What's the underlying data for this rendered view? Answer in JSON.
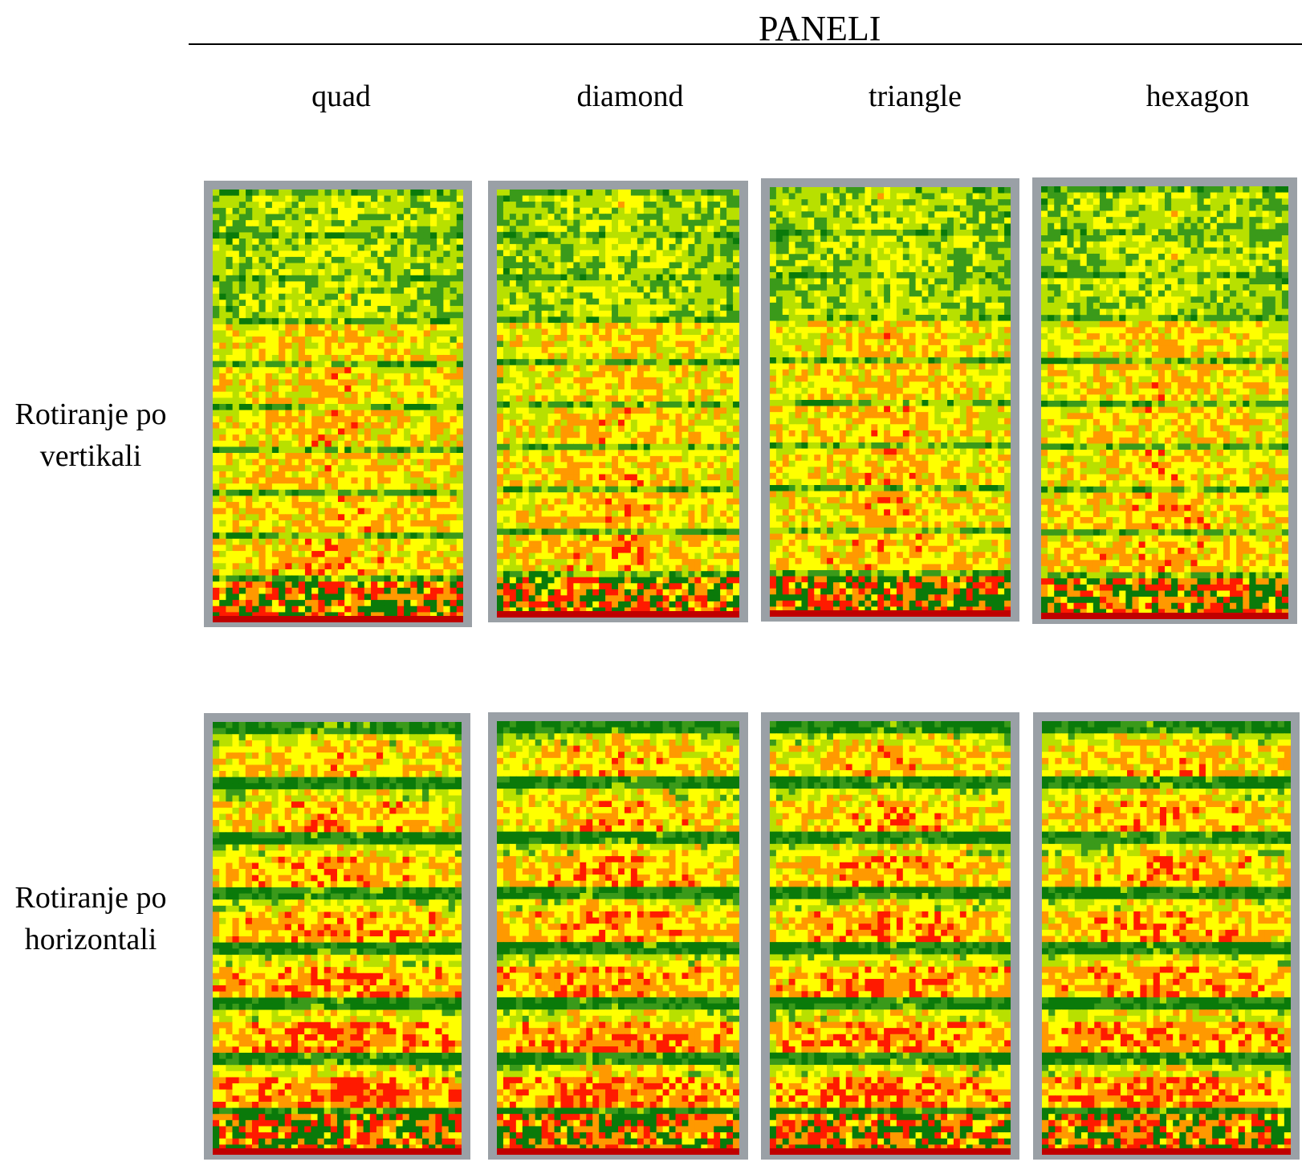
{
  "header": {
    "title": "PANELI"
  },
  "columns": [
    {
      "label": "quad"
    },
    {
      "label": "diamond"
    },
    {
      "label": "triangle"
    },
    {
      "label": "hexagon"
    }
  ],
  "rows": [
    {
      "label_line1": "Rotiranje po",
      "label_line2": "vertikali"
    },
    {
      "label_line1": "Rotiranje po",
      "label_line2": "horizontali"
    }
  ],
  "colors": {
    "frame": "#9aa0a6",
    "dark_green": "#0a7a0a",
    "green": "#3a9a1a",
    "yellow_green": "#b8e000",
    "yellow": "#ffff00",
    "orange": "#ff9900",
    "red": "#ff1a00",
    "support_red": "#c00000"
  }
}
